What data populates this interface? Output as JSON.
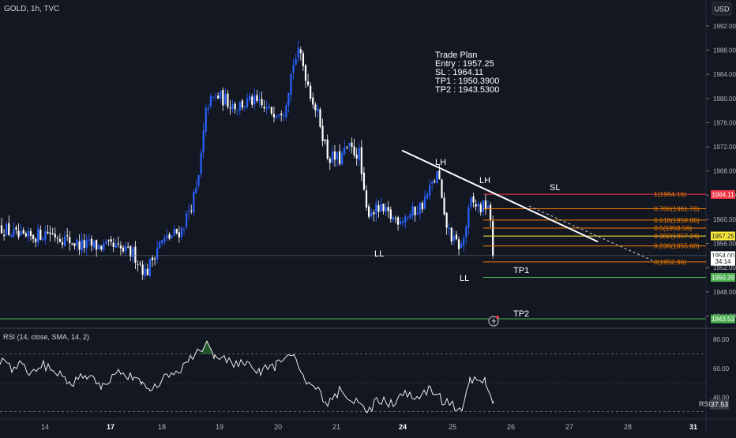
{
  "header": {
    "symbol": "GOLD, 1h, TVC",
    "currency_button": "USD"
  },
  "trade_plan": {
    "title": "Trade Plan",
    "lines": [
      "Entry : 1957.25",
      "SL : 1964.11",
      "TP1 : 1950.3900",
      "TP2 : 1943.5300"
    ]
  },
  "annotations": {
    "lh1": "LH",
    "lh2": "LH",
    "ll1": "LL",
    "ll2": "LL",
    "sl": "SL",
    "tp1": "TP1",
    "tp2": "TP2"
  },
  "colors": {
    "background": "#131722",
    "bull": "#2962ff",
    "bear": "#ffffff",
    "fib": "#f57c00",
    "sl": "#f23645",
    "entry": "#ffeb3b",
    "tp": "#4caf50",
    "rsi_line": "#ffffff",
    "rsi_ob_fill": "#2e7d32"
  },
  "chart_data": {
    "type": "candlestick",
    "symbol": "GOLD",
    "timeframe": "1h",
    "source": "TVC",
    "y_axis": {
      "ticks": [
        1992,
        1988,
        1984,
        1980,
        1976,
        1972,
        1968,
        1964,
        1960,
        1956,
        1952,
        1948,
        1944
      ],
      "tick_labels": [
        "1992.00",
        "1988.00",
        "1984.00",
        "1980.00",
        "1976.00",
        "1972.00",
        "1968.00",
        "1964.00",
        "1960.00",
        "1956.00",
        "1952.00",
        "1948.00",
        "1944.00"
      ],
      "range": [
        1942.1,
        1996.3
      ]
    },
    "x_axis": {
      "tick_labels": [
        "14",
        "17",
        "18",
        "19",
        "20",
        "21",
        "24",
        "25",
        "26",
        "27",
        "28",
        "31"
      ],
      "bold_labels": [
        "17",
        "24",
        "31"
      ]
    },
    "price_path": [
      [
        0,
        1958.8
      ],
      [
        30,
        1956.6
      ],
      [
        60,
        1958.0
      ],
      [
        100,
        1955.8
      ],
      [
        140,
        1955.4
      ],
      [
        170,
        1954.2
      ],
      [
        185,
        1951.0
      ],
      [
        200,
        1955.8
      ],
      [
        230,
        1958.3
      ],
      [
        250,
        1965.2
      ],
      [
        262,
        1979.0
      ],
      [
        275,
        1980.4
      ],
      [
        300,
        1978.8
      ],
      [
        320,
        1979.6
      ],
      [
        340,
        1977.8
      ],
      [
        360,
        1978.4
      ],
      [
        372,
        1986.2
      ],
      [
        380,
        1987.6
      ],
      [
        392,
        1981.4
      ],
      [
        405,
        1976.2
      ],
      [
        415,
        1970.4
      ],
      [
        430,
        1969.9
      ],
      [
        440,
        1971.8
      ],
      [
        455,
        1970.8
      ],
      [
        463,
        1961.4
      ],
      [
        480,
        1961.6
      ],
      [
        500,
        1960.0
      ],
      [
        520,
        1960.8
      ],
      [
        535,
        1962.5
      ],
      [
        555,
        1967.8
      ],
      [
        562,
        1960.0
      ],
      [
        575,
        1956.2
      ],
      [
        585,
        1955.4
      ],
      [
        596,
        1962.8
      ],
      [
        610,
        1961.8
      ],
      [
        618,
        1962.6
      ],
      [
        625,
        1954.0
      ]
    ],
    "levels": [
      {
        "label": "1(1964.16)",
        "value": 1964.16,
        "kind": "fib"
      },
      {
        "label": "0.786(1961.76)",
        "value": 1961.76,
        "kind": "fib"
      },
      {
        "label": "0.618(1959.88)",
        "value": 1959.88,
        "kind": "fib"
      },
      {
        "label": "0.5(1958.56)",
        "value": 1958.56,
        "kind": "fib"
      },
      {
        "label": "0.382(1957.24)",
        "value": 1957.24,
        "kind": "fib"
      },
      {
        "label": "0.236(1955.60)",
        "value": 1955.6,
        "kind": "fib"
      },
      {
        "label": "0(1952.96)",
        "value": 1952.96,
        "kind": "fib"
      }
    ],
    "price_badges": [
      {
        "label": "1964.11",
        "value": 1964.11,
        "kind": "sl"
      },
      {
        "label": "1957.25",
        "value": 1957.25,
        "kind": "entry"
      },
      {
        "label": "1954.00",
        "value": 1954.0,
        "kind": "last"
      },
      {
        "label": "34:14",
        "value": 1953.05,
        "kind": "countdown"
      },
      {
        "label": "1950.39",
        "value": 1950.39,
        "kind": "tp"
      },
      {
        "label": "1943.53",
        "value": 1943.53,
        "kind": "tp"
      }
    ],
    "trendline": {
      "from": [
        509,
        1971.4
      ],
      "to": [
        757,
        1956.3
      ]
    },
    "projection": {
      "from": [
        670,
        1962.2
      ],
      "to": [
        826,
        1953.2
      ]
    },
    "last_price": 1954.0,
    "rsi": {
      "title": "RSI (14, close, SMA, 14, 2)",
      "value_label": "RSI",
      "value": "37.53",
      "ticks": [
        80,
        60,
        40
      ],
      "tick_labels": [
        "80.00",
        "60.00",
        "40.00"
      ],
      "levels": [
        70,
        50,
        30
      ],
      "range": [
        25.4,
        86.7
      ],
      "path": [
        [
          0,
          66
        ],
        [
          15,
          60
        ],
        [
          25,
          65
        ],
        [
          40,
          56
        ],
        [
          55,
          62
        ],
        [
          70,
          59
        ],
        [
          90,
          50
        ],
        [
          110,
          55
        ],
        [
          130,
          48
        ],
        [
          150,
          58
        ],
        [
          170,
          52
        ],
        [
          180,
          48
        ],
        [
          190,
          44
        ],
        [
          205,
          52
        ],
        [
          220,
          56
        ],
        [
          235,
          63
        ],
        [
          250,
          70
        ],
        [
          262,
          80
        ],
        [
          272,
          66
        ],
        [
          290,
          65
        ],
        [
          310,
          62
        ],
        [
          330,
          58
        ],
        [
          350,
          62
        ],
        [
          372,
          70
        ],
        [
          385,
          52
        ],
        [
          400,
          46
        ],
        [
          415,
          34
        ],
        [
          430,
          44
        ],
        [
          445,
          40
        ],
        [
          465,
          31
        ],
        [
          480,
          38
        ],
        [
          495,
          35
        ],
        [
          510,
          42
        ],
        [
          525,
          39
        ],
        [
          545,
          46
        ],
        [
          560,
          38
        ],
        [
          570,
          34
        ],
        [
          585,
          34
        ],
        [
          595,
          52
        ],
        [
          605,
          54
        ],
        [
          615,
          50
        ],
        [
          625,
          37.5
        ]
      ]
    }
  }
}
